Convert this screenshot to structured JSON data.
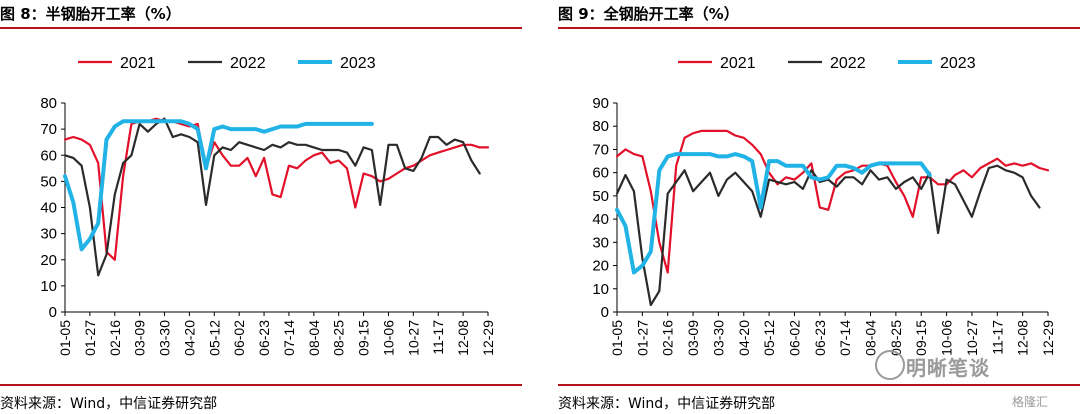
{
  "charts": [
    {
      "title": "图 8：半钢胎开工率（%）",
      "source": "资料来源：Wind，中信证券研究部"
    },
    {
      "title": "图 9：全钢胎开工率（%）",
      "source": "资料来源：Wind，中信证券研究部"
    }
  ],
  "watermark": {
    "text": "明晰笔谈",
    "sub": "格隆汇"
  },
  "chart_data": [
    {
      "type": "line",
      "title": "图 8：半钢胎开工率（%）",
      "ylim": [
        0,
        80
      ],
      "yticks": [
        0,
        10,
        20,
        30,
        40,
        50,
        60,
        70,
        80
      ],
      "xlim": [
        1,
        52
      ],
      "x_tick_labels": [
        "01-05",
        "01-27",
        "02-16",
        "03-09",
        "03-30",
        "04-20",
        "05-12",
        "06-02",
        "06-23",
        "07-14",
        "08-04",
        "08-25",
        "09-15",
        "10-06",
        "10-27",
        "11-17",
        "12-08",
        "12-29"
      ],
      "legend": [
        "2021",
        "2022",
        "2023"
      ],
      "legend_position": "top",
      "series": [
        {
          "name": "2021",
          "color": "#e3102a",
          "values": [
            66,
            67,
            66,
            64,
            57,
            23,
            20,
            52,
            72,
            73,
            73,
            74,
            73,
            73,
            72,
            71,
            72,
            55,
            65,
            60,
            56,
            56,
            59,
            52,
            59,
            45,
            44,
            56,
            55,
            58,
            60,
            61,
            57,
            58,
            55,
            40,
            53,
            52,
            50,
            51,
            53,
            55,
            56,
            58,
            60,
            61,
            62,
            63,
            64,
            64,
            63,
            63
          ]
        },
        {
          "name": "2022",
          "color": "#2b2b2b",
          "values": [
            60,
            59,
            56,
            40,
            14,
            22,
            45,
            57,
            60,
            72,
            69,
            72,
            74,
            67,
            68,
            67,
            65,
            41,
            60,
            63,
            62,
            65,
            64,
            63,
            62,
            64,
            63,
            65,
            64,
            64,
            63,
            62,
            62,
            62,
            61,
            56,
            63,
            62,
            41,
            64,
            64,
            55,
            54,
            59,
            67,
            67,
            64,
            66,
            65,
            58,
            53,
            null
          ]
        },
        {
          "name": "2023",
          "color": "#21b2e6",
          "values": [
            52,
            42,
            24,
            28,
            34,
            66,
            71,
            73,
            73,
            73,
            73,
            73,
            73,
            73,
            73,
            72,
            70,
            55,
            70,
            71,
            70,
            70,
            70,
            70,
            69,
            70,
            71,
            71,
            71,
            72,
            72,
            72,
            72,
            72,
            72,
            72,
            72,
            72,
            null,
            null,
            null,
            null,
            null,
            null,
            null,
            null,
            null,
            null,
            null,
            null,
            null,
            null
          ]
        }
      ]
    },
    {
      "type": "line",
      "title": "图 9：全钢胎开工率（%）",
      "ylim": [
        0,
        90
      ],
      "yticks": [
        0,
        10,
        20,
        30,
        40,
        50,
        60,
        70,
        80,
        90
      ],
      "xlim": [
        1,
        52
      ],
      "x_tick_labels": [
        "01-05",
        "01-27",
        "02-16",
        "03-09",
        "03-30",
        "04-20",
        "05-12",
        "06-02",
        "06-23",
        "07-14",
        "08-04",
        "08-25",
        "09-15",
        "10-06",
        "10-27",
        "11-17",
        "12-08",
        "12-29"
      ],
      "legend": [
        "2021",
        "2022",
        "2023"
      ],
      "legend_position": "top",
      "series": [
        {
          "name": "2021",
          "color": "#e3102a",
          "values": [
            67,
            70,
            68,
            67,
            52,
            30,
            17,
            63,
            75,
            77,
            78,
            78,
            78,
            78,
            76,
            75,
            72,
            68,
            60,
            55,
            58,
            57,
            60,
            64,
            45,
            44,
            57,
            60,
            61,
            63,
            63,
            64,
            63,
            56,
            50,
            41,
            58,
            58,
            55,
            55,
            59,
            61,
            58,
            62,
            64,
            66,
            63,
            64,
            63,
            64,
            62,
            61
          ]
        },
        {
          "name": "2022",
          "color": "#2b2b2b",
          "values": [
            51,
            59,
            52,
            23,
            3,
            9,
            51,
            56,
            61,
            52,
            56,
            60,
            50,
            57,
            60,
            56,
            52,
            41,
            57,
            56,
            55,
            56,
            53,
            61,
            56,
            57,
            54,
            58,
            58,
            55,
            61,
            57,
            58,
            53,
            56,
            58,
            53,
            60,
            34,
            57,
            55,
            48,
            41,
            52,
            62,
            63,
            61,
            60,
            58,
            50,
            45,
            null
          ]
        },
        {
          "name": "2023",
          "color": "#21b2e6",
          "values": [
            44,
            37,
            17,
            20,
            26,
            61,
            67,
            68,
            68,
            68,
            68,
            68,
            67,
            67,
            68,
            67,
            65,
            45,
            65,
            65,
            63,
            63,
            63,
            58,
            57,
            58,
            63,
            63,
            62,
            60,
            63,
            64,
            64,
            64,
            64,
            64,
            64,
            59,
            null,
            null,
            null,
            null,
            null,
            null,
            null,
            null,
            null,
            null,
            null,
            null,
            null,
            null
          ]
        }
      ]
    }
  ]
}
